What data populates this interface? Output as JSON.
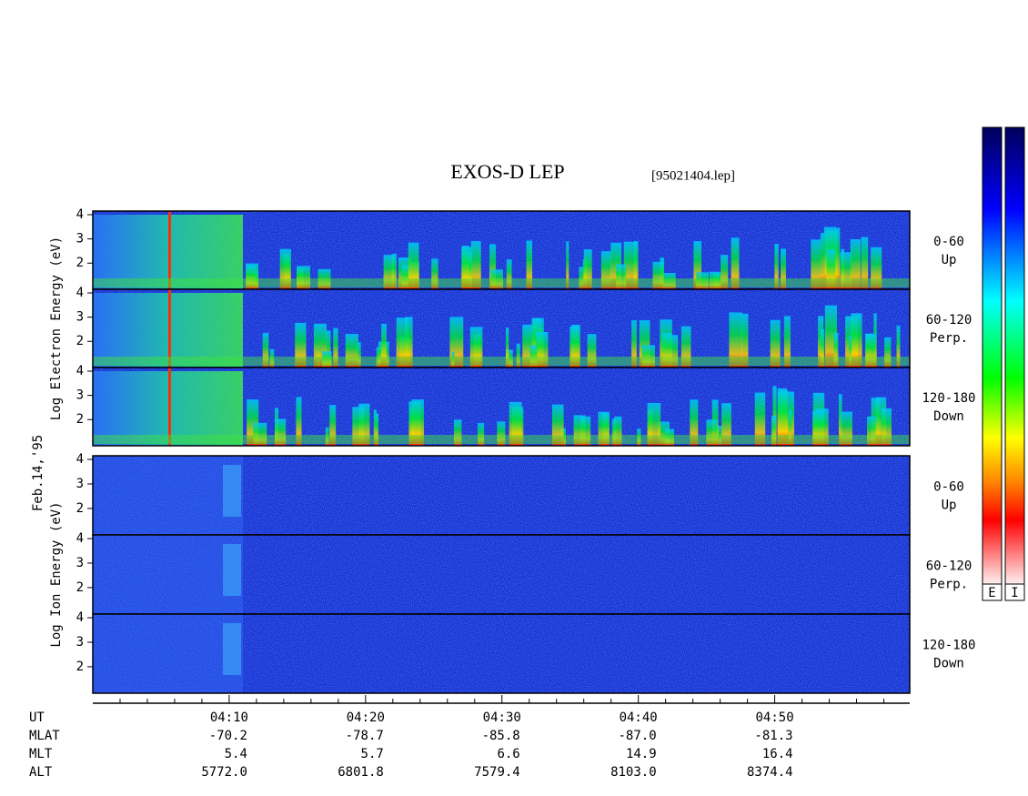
{
  "chart_data": {
    "type": "spectrogram",
    "title": "EXOS-D LEP",
    "subtitle": "[95021404.lep]",
    "date_label": "Feb.14,'95",
    "ylim": [
      0.92,
      4.15
    ],
    "yticks": [
      2,
      3,
      4
    ],
    "xlim": [
      0,
      59.9
    ],
    "x_label": "UT",
    "xticks": [
      {
        "value": 10,
        "label": "04:10"
      },
      {
        "value": 20,
        "label": "04:20"
      },
      {
        "value": 30,
        "label": "04:30"
      },
      {
        "value": 40,
        "label": "04:40"
      },
      {
        "value": 50,
        "label": "04:50"
      }
    ],
    "minor_xticks": [
      2,
      4,
      6,
      8,
      12,
      14,
      16,
      18,
      22,
      24,
      26,
      28,
      32,
      34,
      36,
      38,
      42,
      44,
      46,
      48,
      52,
      54,
      56,
      58
    ],
    "species": [
      {
        "ylabel": "Log Electron Energy (eV)",
        "panels": [
          {
            "angle": "0-60",
            "direction": "Up"
          },
          {
            "angle": "60-120",
            "direction": "Perp."
          },
          {
            "angle": "120-180",
            "direction": "Down"
          }
        ]
      },
      {
        "ylabel": "Log Ion Energy (eV)",
        "panels": [
          {
            "angle": "0-60",
            "direction": "Up"
          },
          {
            "angle": "60-120",
            "direction": "Perp."
          },
          {
            "angle": "120-180",
            "direction": "Down"
          }
        ]
      }
    ],
    "ephemeris": [
      {
        "name": "MLAT",
        "values": [
          "-70.2",
          "-78.7",
          "-85.8",
          "-87.0",
          "-81.3"
        ]
      },
      {
        "name": "MLT",
        "values": [
          "5.4",
          "5.7",
          "6.6",
          "14.9",
          "16.4"
        ]
      },
      {
        "name": "ALT",
        "values": [
          "5772.0",
          "6801.8",
          "7579.4",
          "8103.0",
          "8374.4"
        ]
      }
    ],
    "colorbars": [
      "E",
      "I"
    ]
  }
}
